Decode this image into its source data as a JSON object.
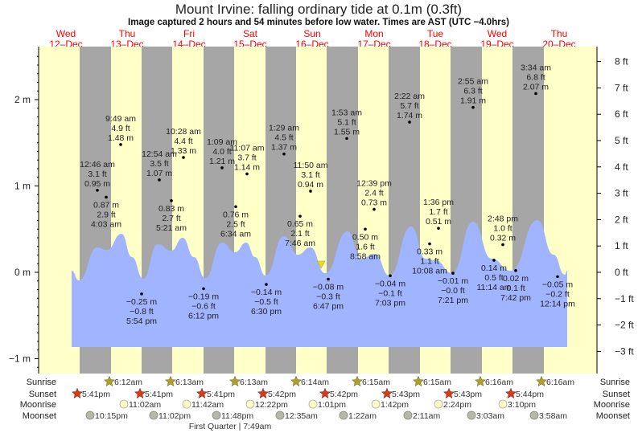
{
  "title": "Mount Irvine: falling  ordinary tide at 0.1m (0.3ft)",
  "subtitle": "Image captured 2 hours and 54 minutes before low water. Times are AST (UTC −4.0hrs)",
  "days": [
    {
      "dow": "Wed",
      "date": "12–Dec"
    },
    {
      "dow": "Thu",
      "date": "13–Dec"
    },
    {
      "dow": "Fri",
      "date": "14–Dec"
    },
    {
      "dow": "Sat",
      "date": "15–Dec"
    },
    {
      "dow": "Sun",
      "date": "16–Dec"
    },
    {
      "dow": "Mon",
      "date": "17–Dec"
    },
    {
      "dow": "Tue",
      "date": "18–Dec"
    },
    {
      "dow": "Wed",
      "date": "19–Dec"
    },
    {
      "dow": "Thu",
      "date": "20–Dec"
    }
  ],
  "colors": {
    "day": "#ffffc8",
    "night": "#a6a6a6",
    "water": "#a0b4ff",
    "day_label": "#ff0000",
    "marker": "#e8e000"
  },
  "chart_data": {
    "type": "area",
    "title": "Mount Irvine: falling  ordinary tide at 0.1m (0.3ft)",
    "ylabel_left": "m",
    "ylabel_right": "ft",
    "ylim_m": [
      -1.15,
      2.6
    ],
    "y_ticks_m": [
      "2 m",
      "1 m",
      "0 m",
      "−1 m"
    ],
    "y_ticks_m_values": [
      2,
      1,
      0,
      -1
    ],
    "y_ticks_ft": [
      "8 ft",
      "7 ft",
      "6 ft",
      "5 ft",
      "4 ft",
      "3 ft",
      "2 ft",
      "1 ft",
      "0 ft",
      "−1 ft",
      "−2 ft",
      "−3 ft"
    ],
    "y_ticks_ft_values": [
      8,
      7,
      6,
      5,
      4,
      3,
      2,
      1,
      0,
      -1,
      -2,
      -3
    ],
    "current_level_m": 0.1,
    "tides": [
      {
        "type": "high",
        "time": "12:46 am",
        "ft": "3.1 ft",
        "m": "0.95 m",
        "value": 0.95
      },
      {
        "type": "low",
        "time": "4:03 am",
        "ft": "2.9 ft",
        "m": "0.87 m",
        "value": 0.87
      },
      {
        "type": "high",
        "time": "9:49 am",
        "ft": "4.9 ft",
        "m": "1.48 m",
        "value": 1.48
      },
      {
        "type": "low",
        "time": "5:54 pm",
        "ft": "−0.8 ft",
        "m": "−0.25 m",
        "value": -0.25
      },
      {
        "type": "high",
        "time": "12:54 am",
        "ft": "3.5 ft",
        "m": "1.07 m",
        "value": 1.07
      },
      {
        "type": "low",
        "time": "5:21 am",
        "ft": "2.7 ft",
        "m": "0.83 m",
        "value": 0.83
      },
      {
        "type": "high",
        "time": "10:28 am",
        "ft": "4.4 ft",
        "m": "1.33 m",
        "value": 1.33
      },
      {
        "type": "low",
        "time": "6:12 pm",
        "ft": "−0.6 ft",
        "m": "−0.19 m",
        "value": -0.19
      },
      {
        "type": "high",
        "time": "1:09 am",
        "ft": "4.0 ft",
        "m": "1.21 m",
        "value": 1.21
      },
      {
        "type": "low",
        "time": "6:34 am",
        "ft": "2.5 ft",
        "m": "0.76 m",
        "value": 0.76
      },
      {
        "type": "high",
        "time": "11:07 am",
        "ft": "3.7 ft",
        "m": "1.14 m",
        "value": 1.14
      },
      {
        "type": "low",
        "time": "6:30 pm",
        "ft": "−0.5 ft",
        "m": "−0.14 m",
        "value": -0.14
      },
      {
        "type": "high",
        "time": "1:29 am",
        "ft": "4.5 ft",
        "m": "1.37 m",
        "value": 1.37
      },
      {
        "type": "low",
        "time": "7:46 am",
        "ft": "2.1 ft",
        "m": "0.65 m",
        "value": 0.65
      },
      {
        "type": "high",
        "time": "11:50 am",
        "ft": "3.1 ft",
        "m": "0.94 m",
        "value": 0.94
      },
      {
        "type": "low",
        "time": "6:47 pm",
        "ft": "−0.3 ft",
        "m": "−0.08 m",
        "value": -0.08
      },
      {
        "type": "high",
        "time": "1:53 am",
        "ft": "5.1 ft",
        "m": "1.55 m",
        "value": 1.55
      },
      {
        "type": "low",
        "time": "8:58 am",
        "ft": "1.6 ft",
        "m": "0.50 m",
        "value": 0.5
      },
      {
        "type": "high",
        "time": "12:39 pm",
        "ft": "2.4 ft",
        "m": "0.73 m",
        "value": 0.73
      },
      {
        "type": "low",
        "time": "7:03 pm",
        "ft": "−0.1 ft",
        "m": "−0.04 m",
        "value": -0.04
      },
      {
        "type": "high",
        "time": "2:22 am",
        "ft": "5.7 ft",
        "m": "1.74 m",
        "value": 1.74
      },
      {
        "type": "low",
        "time": "10:08 am",
        "ft": "1.1 ft",
        "m": "0.33 m",
        "value": 0.33
      },
      {
        "type": "high",
        "time": "1:36 pm",
        "ft": "1.7 ft",
        "m": "0.51 m",
        "value": 0.51
      },
      {
        "type": "low",
        "time": "7:21 pm",
        "ft": "−0.0 ft",
        "m": "−0.01 m",
        "value": -0.01
      },
      {
        "type": "high",
        "time": "2:55 am",
        "ft": "6.3 ft",
        "m": "1.91 m",
        "value": 1.91
      },
      {
        "type": "low",
        "time": "11:14 am",
        "ft": "0.5 ft",
        "m": "0.14 m",
        "value": 0.14
      },
      {
        "type": "high",
        "time": "2:48 pm",
        "ft": "1.0 ft",
        "m": "0.32 m",
        "value": 0.32
      },
      {
        "type": "low",
        "time": "7:42 pm",
        "ft": "0.1 ft",
        "m": "0.02 m",
        "value": 0.02
      },
      {
        "type": "high",
        "time": "3:34 am",
        "ft": "6.8 ft",
        "m": "2.07 m",
        "value": 2.07
      },
      {
        "type": "low",
        "time": "12:14 pm",
        "ft": "−0.2 ft",
        "m": "−0.05 m",
        "value": -0.05
      }
    ]
  },
  "almanac": {
    "sunrise": {
      "label": "Sunrise",
      "times": [
        "6:12am",
        "6:13am",
        "6:13am",
        "6:14am",
        "6:15am",
        "6:15am",
        "6:16am",
        "6:16am"
      ]
    },
    "sunset": {
      "label": "Sunset",
      "times": [
        "5:41pm",
        "5:41pm",
        "5:41pm",
        "5:42pm",
        "5:42pm",
        "5:43pm",
        "5:43pm",
        "5:44pm"
      ]
    },
    "moonrise": {
      "label": "Moonrise",
      "times": [
        "11:02am",
        "11:42am",
        "12:22pm",
        "1:01pm",
        "1:42pm",
        "2:24pm",
        "3:10pm"
      ]
    },
    "moonset": {
      "label": "Moonset",
      "times": [
        "10:15pm",
        "11:02pm",
        "11:48pm",
        "12:35am",
        "1:22am",
        "2:11am",
        "3:03am",
        "3:58am"
      ]
    },
    "moon_phase": "First Quarter | 7:49am"
  }
}
